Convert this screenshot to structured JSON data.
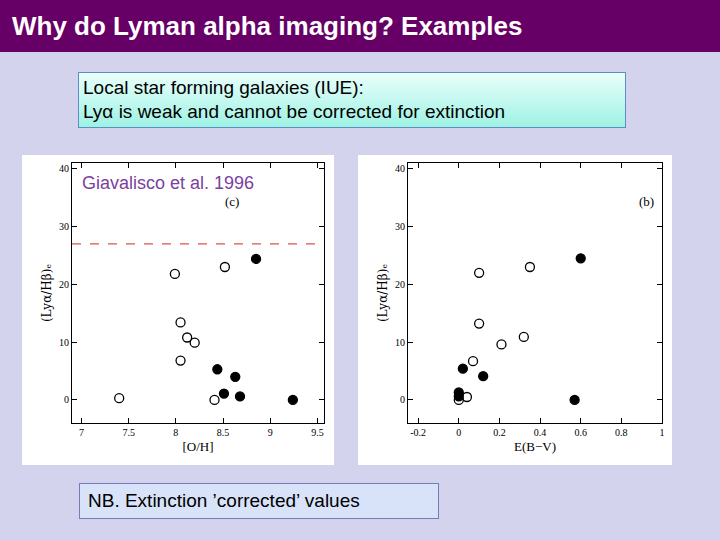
{
  "slide": {
    "title": "Why do Lyman alpha imaging? Examples",
    "box_lines": [
      "Local star forming galaxies (IUE):",
      "Lyα is weak and cannot be corrected for extinction"
    ],
    "note": "NB. Extinction ’corrected’ values"
  },
  "chart_data": [
    {
      "type": "scatter",
      "annotations": [
        {
          "text": "Giavalisco et al. 1996",
          "color": "#7b3fa0"
        },
        {
          "text": "(c)",
          "color": "#000000"
        }
      ],
      "x_label": "[O/H]",
      "y_label": "(Lyα/Hβ)ₑ",
      "xlim": [
        6.9,
        9.57
      ],
      "xticks": [
        7,
        7.5,
        8,
        8.5,
        9,
        9.5
      ],
      "ylim": [
        -4,
        41
      ],
      "yticks": [
        0,
        10,
        20,
        30,
        40
      ],
      "reference_line": {
        "y": 27,
        "color": "#e05050",
        "line_style": "dash"
      },
      "series": [
        {
          "marker": "open",
          "color": "#000000",
          "x": [
            7.4,
            7.99,
            8.05,
            8.12,
            8.2,
            8.05,
            8.52,
            8.41
          ],
          "values": [
            0.3,
            21.8,
            13.4,
            10.8,
            9.9,
            6.8,
            23,
            0
          ]
        },
        {
          "marker": "filled",
          "color": "#000000",
          "x": [
            8.85,
            8.44,
            8.63,
            8.51,
            8.68,
            9.24
          ],
          "values": [
            24.4,
            5.3,
            4.0,
            1.1,
            0.6,
            0
          ]
        }
      ]
    },
    {
      "type": "scatter",
      "annotations": [
        {
          "text": "(b)",
          "color": "#000000"
        }
      ],
      "x_label": "E(B−V)",
      "y_label": "(Lyα/Hβ)ₑ",
      "xlim": [
        -0.25,
        1
      ],
      "xticks": [
        -0.2,
        0,
        0.2,
        0.4,
        0.6,
        0.8,
        1
      ],
      "ylim": [
        -4,
        41
      ],
      "yticks": [
        0,
        10,
        20,
        30,
        40
      ],
      "series": [
        {
          "marker": "open",
          "color": "#000000",
          "x": [
            0,
            0.04,
            0.1,
            0.1,
            0.07,
            0.21,
            0.32,
            0.35
          ],
          "values": [
            0,
            0.5,
            22,
            13.2,
            6.7,
            9.6,
            10.9,
            23
          ]
        },
        {
          "marker": "filled",
          "color": "#000000",
          "x": [
            0,
            0,
            0.02,
            0.12,
            0.6,
            0.57
          ],
          "values": [
            1.3,
            0.6,
            5.4,
            4.1,
            24.5,
            0
          ]
        }
      ]
    }
  ]
}
